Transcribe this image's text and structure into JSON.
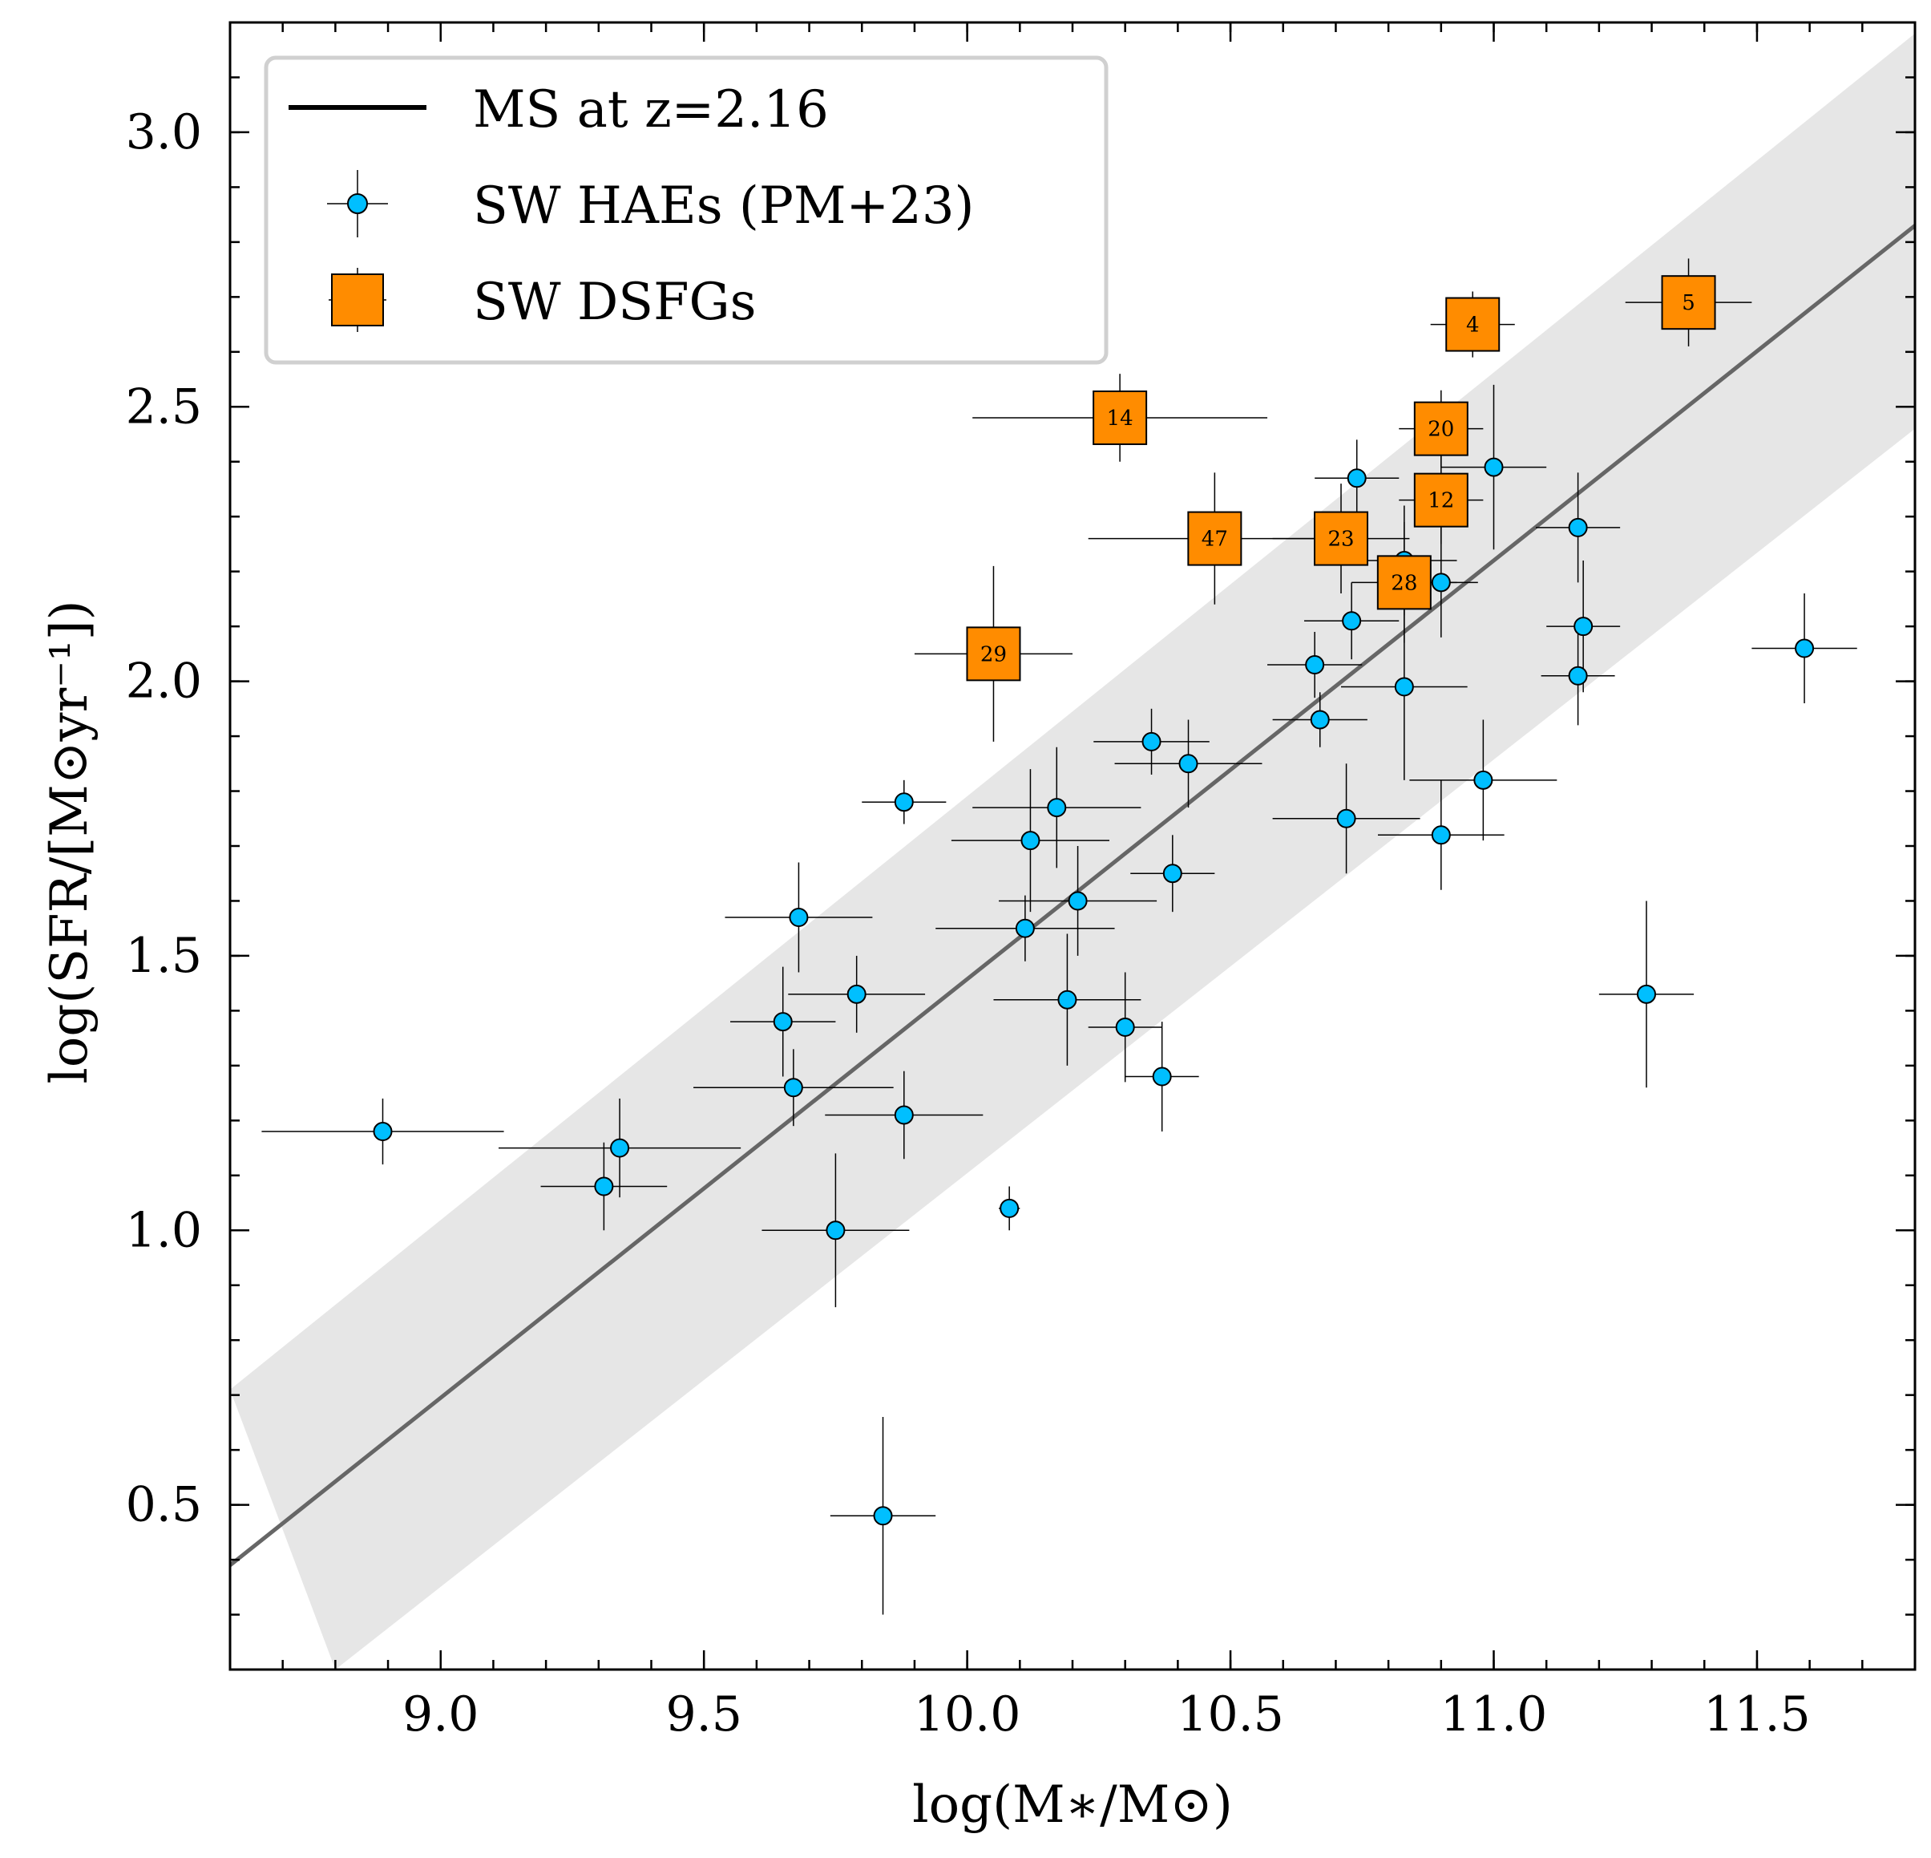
{
  "chart_data": {
    "type": "scatter",
    "xlabel": "log(M∗/M⊙)",
    "ylabel": "log(SFR/[M⊙yr⁻¹])",
    "xlim": [
      8.6,
      11.8
    ],
    "ylim": [
      0.2,
      3.2
    ],
    "xticks": [
      "9.0",
      "9.5",
      "10.0",
      "10.5",
      "11.0",
      "11.5"
    ],
    "yticks": [
      "0.5",
      "1.0",
      "1.5",
      "2.0",
      "2.5",
      "3.0"
    ],
    "grid": false,
    "legend_position": "top-left",
    "colors": {
      "hae": "#00bfff",
      "dsfg": "#ff8c00",
      "ms_line": "#666666",
      "band": "#e6e6e6"
    },
    "main_sequence": {
      "name": "MS at z=2.16",
      "line": [
        [
          8.6,
          0.39
        ],
        [
          11.8,
          2.83
        ]
      ],
      "band_upper": [
        [
          8.6,
          0.71
        ],
        [
          11.8,
          3.18
        ]
      ],
      "band_lower": [
        [
          8.8,
          0.2
        ],
        [
          11.8,
          2.46
        ]
      ]
    },
    "series": [
      {
        "name": "SW HAEs (PM+23)",
        "marker": "circle",
        "points": [
          {
            "x": 8.89,
            "y": 1.18,
            "xerr": 0.23,
            "yerr": 0.06
          },
          {
            "x": 9.31,
            "y": 1.08,
            "xerr": 0.12,
            "yerr": 0.08
          },
          {
            "x": 9.34,
            "y": 1.15,
            "xerr": 0.23,
            "yerr": 0.09
          },
          {
            "x": 9.65,
            "y": 1.38,
            "xerr": 0.1,
            "yerr": 0.1
          },
          {
            "x": 9.67,
            "y": 1.26,
            "xerr": 0.19,
            "yerr": 0.07
          },
          {
            "x": 9.68,
            "y": 1.57,
            "xerr": 0.14,
            "yerr": 0.1
          },
          {
            "x": 9.75,
            "y": 1.0,
            "xerr": 0.14,
            "yerr": 0.14
          },
          {
            "x": 9.79,
            "y": 1.43,
            "xerr": 0.13,
            "yerr": 0.07
          },
          {
            "x": 9.84,
            "y": 0.48,
            "xerr": 0.1,
            "yerr": 0.18
          },
          {
            "x": 9.88,
            "y": 1.21,
            "xerr": 0.15,
            "yerr": 0.08
          },
          {
            "x": 9.88,
            "y": 1.78,
            "xerr": 0.08,
            "yerr": 0.04
          },
          {
            "x": 10.08,
            "y": 1.04,
            "xerr": 0.02,
            "yerr": 0.04
          },
          {
            "x": 10.11,
            "y": 1.55,
            "xerr": 0.17,
            "yerr": 0.06
          },
          {
            "x": 10.12,
            "y": 1.71,
            "xerr": 0.15,
            "yerr": 0.13
          },
          {
            "x": 10.17,
            "y": 1.77,
            "xerr": 0.16,
            "yerr": 0.11
          },
          {
            "x": 10.19,
            "y": 1.42,
            "xerr": 0.14,
            "yerr": 0.12
          },
          {
            "x": 10.21,
            "y": 1.6,
            "xerr": 0.15,
            "yerr": 0.1
          },
          {
            "x": 10.3,
            "y": 1.37,
            "xerr": 0.07,
            "yerr": 0.1
          },
          {
            "x": 10.35,
            "y": 1.89,
            "xerr": 0.11,
            "yerr": 0.06
          },
          {
            "x": 10.37,
            "y": 1.28,
            "xerr": 0.07,
            "yerr": 0.1
          },
          {
            "x": 10.39,
            "y": 1.65,
            "xerr": 0.08,
            "yerr": 0.07
          },
          {
            "x": 10.42,
            "y": 1.85,
            "xerr": 0.14,
            "yerr": 0.08
          },
          {
            "x": 10.66,
            "y": 2.03,
            "xerr": 0.09,
            "yerr": 0.06
          },
          {
            "x": 10.67,
            "y": 1.93,
            "xerr": 0.09,
            "yerr": 0.05
          },
          {
            "x": 10.72,
            "y": 1.75,
            "xerr": 0.14,
            "yerr": 0.1
          },
          {
            "x": 10.73,
            "y": 2.11,
            "xerr": 0.09,
            "yerr": 0.07
          },
          {
            "x": 10.74,
            "y": 2.37,
            "xerr": 0.08,
            "yerr": 0.07
          },
          {
            "x": 10.83,
            "y": 1.99,
            "xerr": 0.12,
            "yerr": 0.17
          },
          {
            "x": 10.83,
            "y": 2.22,
            "xerr": 0.1,
            "yerr": 0.1
          },
          {
            "x": 10.9,
            "y": 2.18,
            "xerr": 0.07,
            "yerr": 0.1
          },
          {
            "x": 10.9,
            "y": 1.72,
            "xerr": 0.12,
            "yerr": 0.1
          },
          {
            "x": 10.98,
            "y": 1.82,
            "xerr": 0.14,
            "yerr": 0.11
          },
          {
            "x": 11.0,
            "y": 2.39,
            "xerr": 0.1,
            "yerr": 0.15
          },
          {
            "x": 11.16,
            "y": 2.28,
            "xerr": 0.08,
            "yerr": 0.1
          },
          {
            "x": 11.16,
            "y": 2.01,
            "xerr": 0.07,
            "yerr": 0.09
          },
          {
            "x": 11.17,
            "y": 2.1,
            "xerr": 0.07,
            "yerr": 0.12
          },
          {
            "x": 11.29,
            "y": 1.43,
            "xerr": 0.09,
            "yerr": 0.17
          },
          {
            "x": 11.59,
            "y": 2.06,
            "xerr": 0.1,
            "yerr": 0.1
          }
        ]
      },
      {
        "name": "SW DSFGs",
        "marker": "square",
        "points": [
          {
            "id": "4",
            "x": 10.96,
            "y": 2.65,
            "xerr": 0.08,
            "yerr": 0.06
          },
          {
            "id": "5",
            "x": 11.37,
            "y": 2.69,
            "xerr": 0.12,
            "yerr": 0.08
          },
          {
            "id": "14",
            "x": 10.29,
            "y": 2.48,
            "xerr": 0.28,
            "yerr": 0.08
          },
          {
            "id": "20",
            "x": 10.9,
            "y": 2.46,
            "xerr": 0.08,
            "yerr": 0.07
          },
          {
            "id": "12",
            "x": 10.9,
            "y": 2.33,
            "xerr": 0.08,
            "yerr": 0.08
          },
          {
            "id": "47",
            "x": 10.47,
            "y": 2.26,
            "xerr": 0.24,
            "yerr": 0.12
          },
          {
            "id": "23",
            "x": 10.71,
            "y": 2.26,
            "xerr": 0.13,
            "yerr": 0.1
          },
          {
            "id": "28",
            "x": 10.83,
            "y": 2.18,
            "xerr": 0.1,
            "yerr": 0.11
          },
          {
            "id": "29",
            "x": 10.05,
            "y": 2.05,
            "xerr": 0.15,
            "yerr": 0.16
          }
        ]
      }
    ]
  }
}
